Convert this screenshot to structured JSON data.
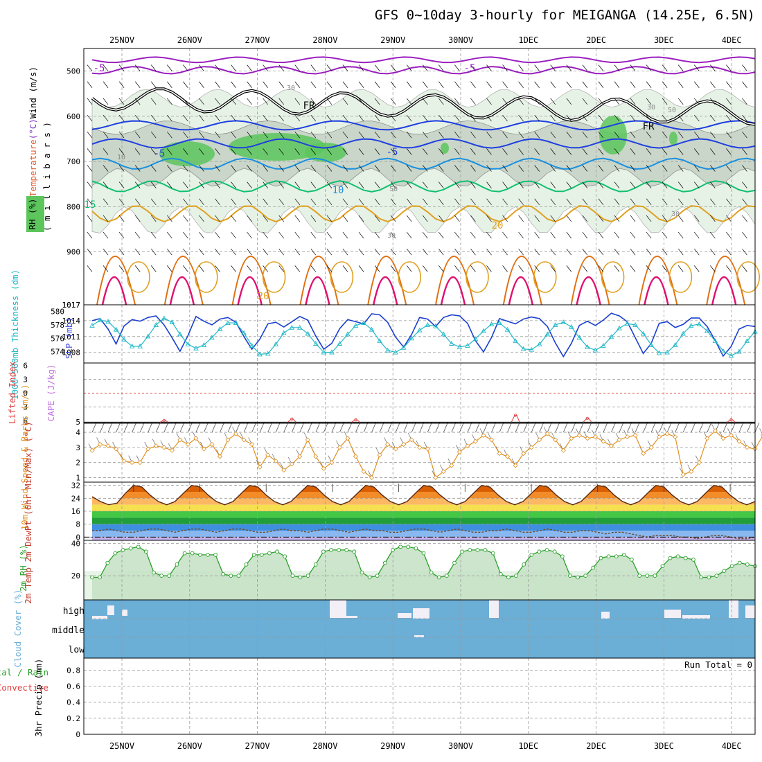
{
  "title": "GFS 0~10day 3-hourly for MEIGANGA (14.25E, 6.5N)",
  "dates": [
    "25NOV",
    "26NOV",
    "27NOV",
    "28NOV",
    "29NOV",
    "30NOV",
    "1DEC",
    "2DEC",
    "3DEC",
    "4DEC"
  ],
  "colors": {
    "rh_green": "#5cc65c",
    "rh_gray": "#bdbdbd",
    "temp_purple": "#9b1fbf",
    "temp_blue": "#1f3fe0",
    "temp_lightblue": "#1a8fe0",
    "temp_green": "#10c070",
    "temp_orange": "#e0a020",
    "temp_dorange": "#e07010",
    "temp_magenta": "#e01070",
    "slp": "#1a3fcf",
    "thickness": "#20b8c8",
    "cape": "#e04040",
    "wind10": "#e09020",
    "temp2m": "#e86a10",
    "rh2m": "#2aa02a",
    "cloud": "#6baed6"
  },
  "chart_data": [
    {
      "type": "contour",
      "name": "upper-air",
      "ylabel_parts": [
        "Temperature",
        "(°C)",
        "Wind (m/s)"
      ],
      "ylabel_units": "( m i l l i b a r s )",
      "ylabel_rh": "RH (%)",
      "yticks": [
        500,
        600,
        700,
        800,
        900,
        1017
      ],
      "ylim": [
        1017,
        450
      ],
      "contour_labels": [
        "-5",
        "-5",
        "10",
        "FR",
        "FR",
        "30",
        "50",
        "-5",
        "-5",
        "30",
        "10",
        "15",
        "50",
        "30",
        "20",
        "30",
        "20"
      ]
    },
    {
      "type": "line",
      "name": "thickness-slp",
      "ylabel_left": "1000~500mb Thickness (dm)",
      "ylabel_right": "SLP (mb)",
      "yticks_left": [
        574,
        576,
        578,
        580
      ],
      "yticks_right": [
        1008,
        1011,
        1014,
        1017
      ],
      "series": [
        {
          "values": [
            1014.0,
            1014.4,
            1012.4,
            1009.6,
            1013.0,
            1014.2,
            1013.9,
            1014.6,
            1014.9,
            1013.2,
            1010.8,
            1008.2,
            1011.2,
            1014.8,
            1013.9,
            1013.2,
            1014.3,
            1014.6,
            1013.7,
            1011.0,
            1008.6,
            1010.5,
            1013.4,
            1013.7,
            1012.8,
            1013.8,
            1014.8,
            1014.1,
            1011.1,
            1008.6,
            1009.7,
            1012.5,
            1014.2,
            1013.8,
            1013.4,
            1015.3,
            1015.1,
            1013.7,
            1010.9,
            1009.0,
            1011.4,
            1014.6,
            1014.3,
            1012.9,
            1014.6,
            1015.1,
            1014.9,
            1013.5,
            1010.2,
            1008.1,
            1010.8,
            1014.4,
            1013.9,
            1013.4,
            1014.3,
            1014.7,
            1014.4,
            1012.9,
            1009.8,
            1007.2,
            1009.7,
            1013.1,
            1013.9,
            1013.1,
            1014.1,
            1015.4,
            1014.9,
            1013.8,
            1010.8,
            1007.8,
            1009.7,
            1013.5,
            1013.8,
            1012.7,
            1013.3,
            1014.5,
            1014.5,
            1012.9,
            1010.3,
            1007.3,
            1009.1,
            1012.4,
            1013.1,
            1012.9
          ]
        },
        {
          "values": [
            577.9,
            578.7,
            578.5,
            577.3,
            575.8,
            574.8,
            574.8,
            576.3,
            578.0,
            579.0,
            578.4,
            576.6,
            575.1,
            574.5,
            575.0,
            576.1,
            577.4,
            578.3,
            578.3,
            576.8,
            574.9,
            573.6,
            573.7,
            575.1,
            576.8,
            577.6,
            577.6,
            576.7,
            575.2,
            573.9,
            573.9,
            575.2,
            576.6,
            577.9,
            578.3,
            577.3,
            575.6,
            574.2,
            573.9,
            574.6,
            576.0,
            577.2,
            578.0,
            577.8,
            576.6,
            575.2,
            574.7,
            574.9,
            575.9,
            577.1,
            578.1,
            578.3,
            577.3,
            575.6,
            574.4,
            574.3,
            575.1,
            576.6,
            578.0,
            578.4,
            577.7,
            576.1,
            574.7,
            574.2,
            574.9,
            576.2,
            577.5,
            578.2,
            578.0,
            576.7,
            575.0,
            573.8,
            573.9,
            575.0,
            576.7,
            577.9,
            578.1,
            577.1,
            575.6,
            574.1,
            573.4,
            574.0,
            575.6,
            577.0
          ]
        }
      ]
    },
    {
      "type": "line",
      "name": "cape-li",
      "ylabel_left": "Lifted Index",
      "ylabel_right": "CAPE (J/kg)",
      "yticks": [
        "6",
        "3",
        "0",
        "3",
        "6"
      ],
      "ylim": [
        -6,
        6
      ],
      "cape_label": "5",
      "series": [
        {
          "x": [
            9,
            25,
            33,
            53,
            62,
            80,
            90
          ],
          "values": [
            5,
            9,
            7,
            20,
            11,
            7,
            8
          ]
        }
      ]
    },
    {
      "type": "line",
      "name": "wind10m",
      "ylabel": "10m Wind Speed & Barbs (m/s)",
      "yticks": [
        1,
        2,
        3,
        4
      ],
      "ylim": [
        0.7,
        4.6
      ],
      "series": [
        {
          "values": [
            2.8,
            3.2,
            3.1,
            2.9,
            2.1,
            2.0,
            2.0,
            2.9,
            3.1,
            3.0,
            2.8,
            3.5,
            3.2,
            3.6,
            2.9,
            3.2,
            2.4,
            3.5,
            3.9,
            3.5,
            3.2,
            1.7,
            2.5,
            2.1,
            1.5,
            1.9,
            2.4,
            3.5,
            2.4,
            1.6,
            2.0,
            3.0,
            3.6,
            2.4,
            1.4,
            1.0,
            2.5,
            3.2,
            2.9,
            3.2,
            3.5,
            3.0,
            2.9,
            1.0,
            1.4,
            1.8,
            2.7,
            3.1,
            3.4,
            3.8,
            3.5,
            2.6,
            2.4,
            1.8,
            2.6,
            3.0,
            3.5,
            3.9,
            3.5,
            2.8,
            3.6,
            3.8,
            3.6,
            3.7,
            3.4,
            3.1,
            3.5,
            3.7,
            3.8,
            2.6,
            3.0,
            3.7,
            3.9,
            3.7,
            1.2,
            1.4,
            2.0,
            3.6,
            4.1,
            3.6,
            3.8,
            3.4,
            3.0,
            2.9,
            3.8
          ]
        }
      ]
    },
    {
      "type": "area",
      "name": "temp2m",
      "ylabel": "2m Temp 2m DewPt (6hr Min/Max) (°C)",
      "yticks": [
        0,
        8,
        16,
        24,
        32
      ],
      "ylim": [
        -2,
        34
      ],
      "series": [
        {
          "name": "temp",
          "values": [
            25,
            22,
            20,
            21,
            27,
            32,
            31,
            26,
            22,
            20,
            22,
            27,
            32,
            31,
            26,
            22,
            20,
            22,
            27,
            32,
            31,
            26,
            22,
            20,
            22,
            27,
            32,
            31,
            26,
            22,
            20,
            22,
            27,
            32,
            31,
            26,
            22,
            20,
            22,
            27,
            32,
            31,
            26,
            22,
            20,
            22,
            27,
            32,
            31,
            26,
            22,
            20,
            22,
            27,
            32,
            31,
            26,
            22,
            20,
            22,
            27,
            32,
            31,
            26,
            22,
            20,
            22,
            27,
            32,
            31,
            26,
            22,
            20,
            22,
            27,
            32,
            31,
            26,
            22,
            20,
            22
          ]
        },
        {
          "name": "dewpt",
          "values": [
            4,
            4,
            5,
            4,
            3,
            3,
            4,
            5,
            5,
            4,
            3,
            4,
            5,
            5,
            4,
            3,
            4,
            5,
            5,
            4,
            3,
            3,
            4,
            5,
            4,
            4,
            3,
            4,
            5,
            5,
            4,
            3,
            4,
            5,
            4,
            4,
            3,
            3,
            4,
            5,
            5,
            4,
            3,
            4,
            5,
            4,
            3,
            3,
            4,
            4,
            5,
            4,
            3,
            3,
            4,
            5,
            4,
            3,
            3,
            4,
            4,
            3,
            2,
            3,
            3,
            2,
            1,
            0,
            1,
            1,
            1,
            0,
            0,
            -1,
            0,
            1,
            1,
            0,
            -1,
            -1,
            0
          ]
        }
      ]
    },
    {
      "type": "area",
      "name": "rh2m",
      "ylabel": "2m RH (%)",
      "yticks": [
        20,
        40
      ],
      "ylim": [
        5,
        42
      ],
      "series": [
        {
          "values": [
            19,
            19,
            28,
            34,
            36,
            37,
            38,
            35,
            22,
            20,
            20,
            27,
            34,
            34,
            33,
            33,
            33,
            21,
            20,
            20,
            27,
            33,
            33,
            34,
            35,
            32,
            20,
            19,
            20,
            27,
            35,
            36,
            36,
            36,
            35,
            22,
            19,
            20,
            28,
            36,
            38,
            38,
            37,
            34,
            22,
            19,
            20,
            28,
            35,
            36,
            36,
            36,
            34,
            21,
            19,
            20,
            27,
            33,
            35,
            36,
            35,
            32,
            20,
            19,
            20,
            25,
            31,
            32,
            32,
            33,
            30,
            20,
            20,
            20,
            26,
            31,
            32,
            31,
            30,
            19,
            19,
            20,
            23,
            26,
            28,
            27,
            26
          ]
        }
      ]
    },
    {
      "type": "bar",
      "name": "cloud",
      "ylabel": "Cloud Cover (%)",
      "yticks": [
        "high",
        "middle",
        "low"
      ],
      "ylim": [
        0,
        100
      ]
    },
    {
      "type": "bar",
      "name": "precip",
      "ylabel": "3hr Precip (mm)",
      "ylabel_total": "Total / Rain",
      "ylabel_conv": "Convective",
      "yticks": [
        0,
        0.2,
        0.4,
        0.6,
        0.8
      ],
      "ylim": [
        0,
        0.95
      ],
      "annotation": "Run Total = 0",
      "values": []
    }
  ]
}
